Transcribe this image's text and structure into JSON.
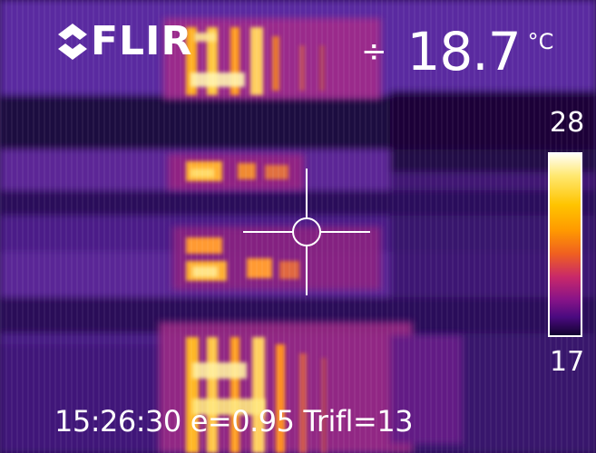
{
  "brand": {
    "name": "FLIR",
    "icon": "flir-logo-icon"
  },
  "spot_meter": {
    "marker_glyph": "÷",
    "value": "18.7",
    "unit": "°C"
  },
  "scale": {
    "max": "28",
    "min": "17"
  },
  "status": {
    "time": "15:26:30",
    "emissivity": "e=0.95",
    "reflected_temp": "Trifl=13"
  },
  "colors": {
    "overlay": "#ffffff",
    "cold": "#1a0630",
    "hot": "#fff6c8"
  }
}
